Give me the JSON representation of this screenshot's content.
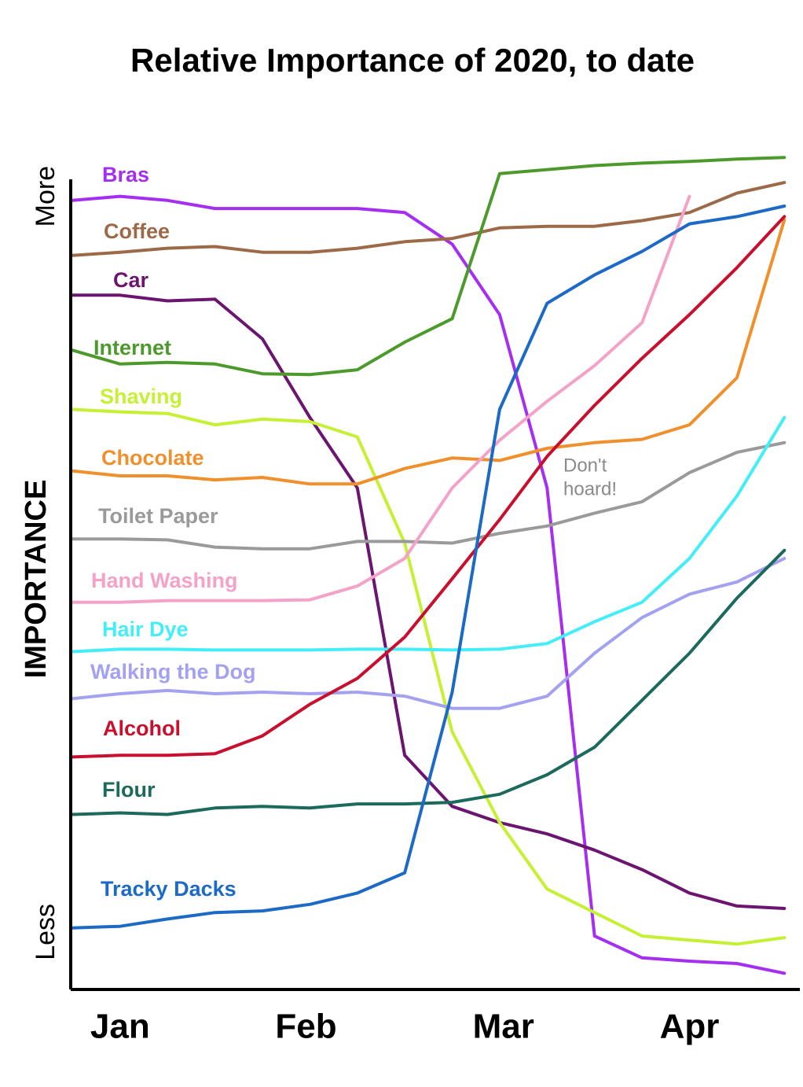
{
  "chart_data": {
    "type": "line",
    "title": "Relative Importance of 2020, to date",
    "y_label": "IMPORTANCE",
    "annotation": [
      "Don't",
      "hoard!"
    ],
    "xlim": [
      0.74,
      4.59
    ],
    "xticks": [
      {
        "value": 1,
        "label": "Jan"
      },
      {
        "value": 1.98,
        "label": "Feb"
      },
      {
        "value": 3.02,
        "label": "Mar"
      },
      {
        "value": 4.0,
        "label": "Apr"
      }
    ],
    "ylim": [
      0,
      110
    ],
    "yticks": [
      {
        "value": 7.1,
        "label": "Less"
      },
      {
        "value": 97.9,
        "label": "More"
      }
    ],
    "grid": false,
    "x": [
      0.75,
      1.0,
      1.25,
      1.5,
      1.75,
      2.0,
      2.25,
      2.5,
      2.75,
      3.0,
      3.25,
      3.5,
      3.75,
      4.0,
      4.25,
      4.5
    ],
    "series": [
      {
        "name": "Bras",
        "color": "#a52ff0",
        "values": [
          97.4,
          97.9,
          97.4,
          96.4,
          96.4,
          96.4,
          96.4,
          95.9,
          92.0,
          83.3,
          61.9,
          6.6,
          3.9,
          3.5,
          3.2,
          2.0
        ]
      },
      {
        "name": "Coffee",
        "color": "#9c6a48",
        "values": [
          90.6,
          91.0,
          91.5,
          91.7,
          91.0,
          91.0,
          91.5,
          92.3,
          92.7,
          94.0,
          94.2,
          94.2,
          94.9,
          95.9,
          98.3,
          99.6
        ]
      },
      {
        "name": "Car",
        "color": "#6b1470",
        "values": [
          85.7,
          85.7,
          85.0,
          85.2,
          80.3,
          70.6,
          61.9,
          28.9,
          22.6,
          20.6,
          19.2,
          17.2,
          14.8,
          11.9,
          10.3,
          10.0
        ]
      },
      {
        "name": "Internet",
        "color": "#4c9a2c",
        "values": [
          78.9,
          77.2,
          77.4,
          77.2,
          76.0,
          75.9,
          76.5,
          79.9,
          82.8,
          100.7,
          101.2,
          101.7,
          102.0,
          102.2,
          102.5,
          102.7
        ]
      },
      {
        "name": "Shaving",
        "color": "#c6f034",
        "values": [
          71.6,
          71.3,
          71.1,
          69.7,
          70.4,
          70.1,
          68.2,
          55.1,
          31.8,
          20.6,
          12.4,
          9.5,
          6.6,
          6.1,
          5.6,
          6.4
        ]
      },
      {
        "name": "Chocolate",
        "color": "#f0902c",
        "values": [
          64.0,
          63.4,
          63.4,
          62.9,
          63.2,
          62.4,
          62.4,
          64.3,
          65.6,
          65.3,
          66.8,
          67.5,
          67.9,
          69.7,
          75.5,
          95.0
        ]
      },
      {
        "name": "Toilet Paper",
        "color": "#9a9a9a",
        "values": [
          55.6,
          55.6,
          55.5,
          54.6,
          54.4,
          54.4,
          55.3,
          55.3,
          55.1,
          56.3,
          57.2,
          58.8,
          60.2,
          63.8,
          66.3,
          67.5
        ]
      },
      {
        "name": "Hand Washing",
        "color": "#f4a2c8",
        "values": [
          47.8,
          47.8,
          48.0,
          48.0,
          48.0,
          48.1,
          49.8,
          53.2,
          61.9,
          67.8,
          72.6,
          77.0,
          82.3,
          97.9,
          null,
          null
        ]
      },
      {
        "name": "Hair Dye",
        "color": "#44eef8",
        "values": [
          41.7,
          42.0,
          42.0,
          41.9,
          41.9,
          41.9,
          42.0,
          42.0,
          41.9,
          42.0,
          42.7,
          45.4,
          47.8,
          53.2,
          60.9,
          70.6
        ]
      },
      {
        "name": "Walking the Dog",
        "color": "#a4a2f0",
        "values": [
          35.9,
          36.5,
          36.9,
          36.5,
          36.7,
          36.5,
          36.7,
          36.2,
          34.7,
          34.7,
          36.2,
          41.5,
          45.9,
          48.8,
          50.3,
          53.2
        ]
      },
      {
        "name": "Alcohol",
        "color": "#c8102e",
        "values": [
          28.7,
          28.9,
          28.9,
          29.1,
          31.3,
          35.2,
          38.4,
          43.5,
          50.7,
          58.0,
          65.8,
          72.1,
          77.9,
          83.3,
          89.1,
          95.4
        ]
      },
      {
        "name": "Flour",
        "color": "#1c6a5c",
        "values": [
          21.6,
          21.8,
          21.6,
          22.4,
          22.6,
          22.4,
          22.9,
          22.9,
          23.1,
          24.1,
          26.5,
          29.9,
          35.7,
          41.5,
          48.3,
          54.2
        ]
      },
      {
        "name": "Tracky Dacks",
        "color": "#1c6ac6",
        "values": [
          7.6,
          7.8,
          8.7,
          9.5,
          9.7,
          10.5,
          11.9,
          14.4,
          36.7,
          71.6,
          84.7,
          88.2,
          91.1,
          94.5,
          95.4,
          96.7
        ]
      }
    ]
  }
}
